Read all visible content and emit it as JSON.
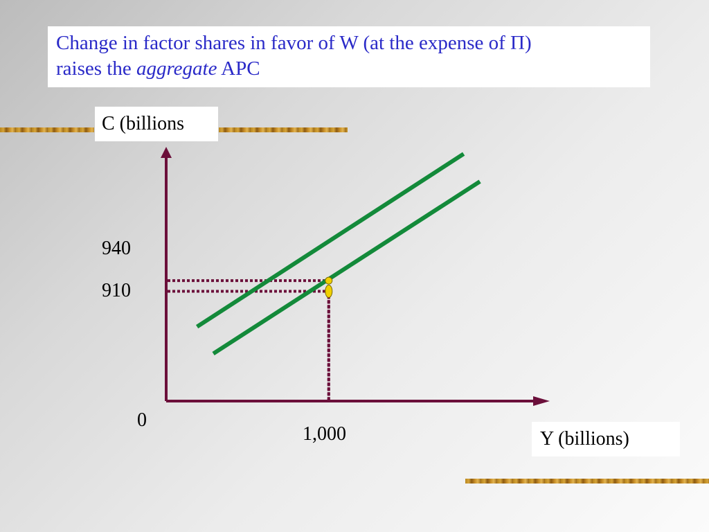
{
  "slide": {
    "title_line1": "Change in factor shares in favor of W (at the expense of Π)",
    "title_line2_prefix": "raises the",
    "title_line2_emphasis": "aggregate",
    "title_line2_suffix": "APC"
  },
  "colors": {
    "title_text": "#2a2ac8",
    "axis": "#6b0f3a",
    "guide_lines": "#6b0f3a",
    "consumption_lines": "#138a3a",
    "points": "#f0d000"
  },
  "chart_data": {
    "type": "line",
    "xlabel": "Y (billions)",
    "ylabel": "C (billions",
    "x_origin_label": "0",
    "x_tick_labels": [
      "1,000"
    ],
    "y_tick_labels": [
      "940",
      "910"
    ],
    "xlim": [
      0,
      2300
    ],
    "ylim": [
      600,
      1310
    ],
    "grid": false,
    "series": [
      {
        "values": [
          [
            190,
            810
          ],
          [
            1830,
            1298
          ]
        ]
      },
      {
        "values": [
          [
            290,
            734
          ],
          [
            1930,
            1220
          ]
        ]
      }
    ],
    "points": [
      {
        "x": 1000,
        "y": 940
      },
      {
        "x": 1000,
        "y": 910
      }
    ],
    "guides": [
      {
        "x": 1000,
        "y": 940
      },
      {
        "x": 1000,
        "y": 910
      }
    ]
  }
}
